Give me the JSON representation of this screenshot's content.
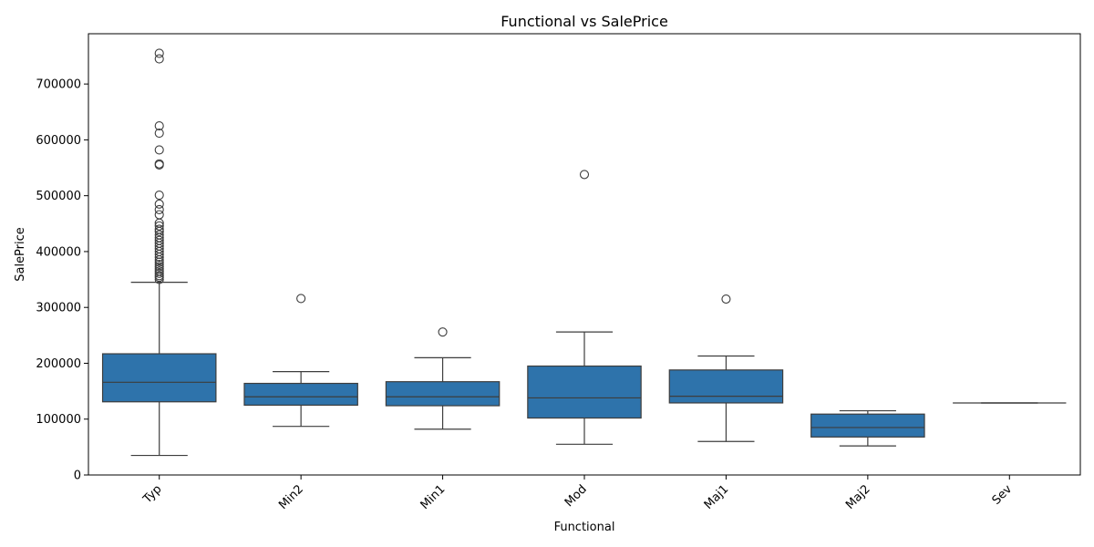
{
  "chart_data": {
    "type": "box",
    "title": "Functional vs SalePrice",
    "xlabel": "Functional",
    "ylabel": "SalePrice",
    "ylim": [
      0,
      790000
    ],
    "yticks": [
      0,
      100000,
      200000,
      300000,
      400000,
      500000,
      600000,
      700000
    ],
    "ytick_labels": [
      "0",
      "100000",
      "200000",
      "300000",
      "400000",
      "500000",
      "600000",
      "700000"
    ],
    "grid": false,
    "color": "#2e73ab",
    "categories": [
      "Typ",
      "Min2",
      "Min1",
      "Mod",
      "Maj1",
      "Maj2",
      "Sev"
    ],
    "boxes": [
      {
        "category": "Typ",
        "whislo": 35000,
        "q1": 131000,
        "median": 166000,
        "q3": 217000,
        "whishi": 345000,
        "fliers": [
          755000,
          745000,
          625000,
          612000,
          582000,
          557000,
          555000,
          501000,
          485000,
          475000,
          466000,
          451000,
          446000,
          440000,
          436000,
          430000,
          425000,
          420000,
          415000,
          410000,
          405000,
          400000,
          395000,
          390000,
          385000,
          381000,
          377000,
          373000,
          369000,
          365000,
          361000,
          357000,
          354000,
          350000
        ]
      },
      {
        "category": "Min2",
        "whislo": 87000,
        "q1": 125000,
        "median": 140000,
        "q3": 164000,
        "whishi": 185000,
        "fliers": [
          316000
        ]
      },
      {
        "category": "Min1",
        "whislo": 82000,
        "q1": 124000,
        "median": 140000,
        "q3": 167000,
        "whishi": 210000,
        "fliers": [
          256000
        ]
      },
      {
        "category": "Mod",
        "whislo": 55000,
        "q1": 102000,
        "median": 138000,
        "q3": 195000,
        "whishi": 256000,
        "fliers": [
          538000
        ]
      },
      {
        "category": "Maj1",
        "whislo": 60000,
        "q1": 129000,
        "median": 141000,
        "q3": 188000,
        "whishi": 213000,
        "fliers": [
          315000
        ]
      },
      {
        "category": "Maj2",
        "whislo": 52000,
        "q1": 68000,
        "median": 85000,
        "q3": 109000,
        "whishi": 115000,
        "fliers": []
      },
      {
        "category": "Sev",
        "whislo": 129000,
        "q1": 129000,
        "median": 129000,
        "q3": 129000,
        "whishi": 129000,
        "fliers": []
      }
    ]
  }
}
